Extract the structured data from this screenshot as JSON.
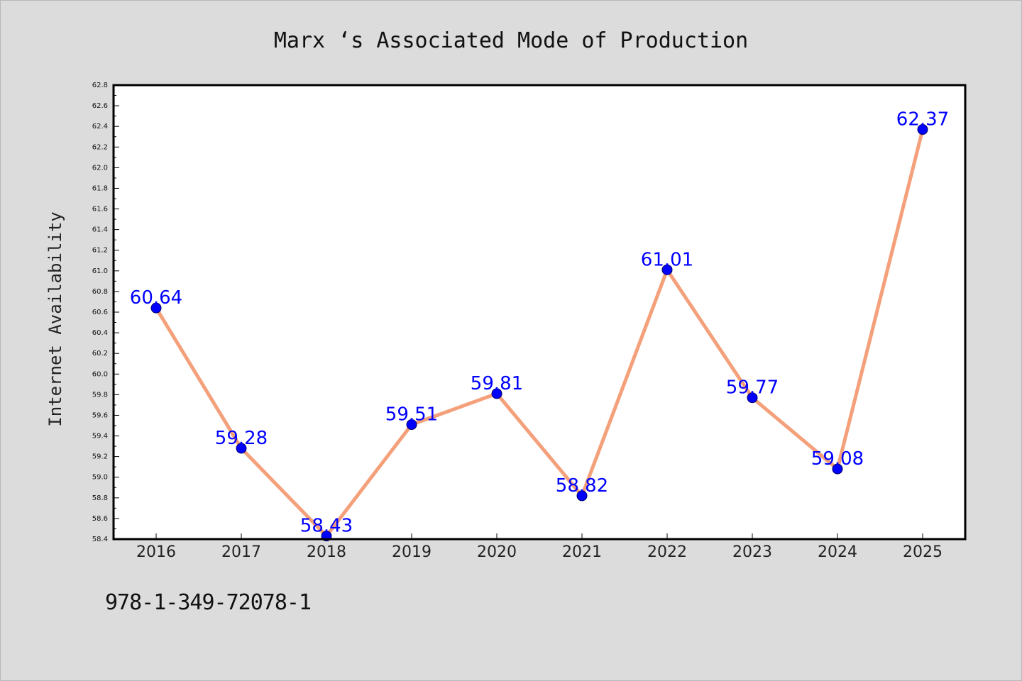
{
  "chart_data": {
    "type": "line",
    "title": "Marx ‘s Associated Mode of Production",
    "xlabel": "",
    "ylabel": "Internet Availability",
    "categories": [
      "2016",
      "2017",
      "2018",
      "2019",
      "2020",
      "2021",
      "2022",
      "2023",
      "2024",
      "2025"
    ],
    "series": [
      {
        "values": [
          60.64,
          59.28,
          58.43,
          59.51,
          59.81,
          58.82,
          61.01,
          59.77,
          59.08,
          62.37
        ],
        "data_labels": [
          "60.64",
          "59.28",
          "58.43",
          "59.51",
          "59.81",
          "58.82",
          "61.01",
          "59.77",
          "59.08",
          "62.37"
        ]
      }
    ],
    "ylim": [
      58.4,
      62.8
    ],
    "yticks": [
      "58.4",
      "58.6",
      "58.8",
      "59.0",
      "59.2",
      "59.4",
      "59.6",
      "59.8",
      "60.0",
      "60.2",
      "60.4",
      "60.6",
      "60.8",
      "61.0",
      "61.2",
      "61.4",
      "61.6",
      "61.8",
      "62.0",
      "62.2",
      "62.4",
      "62.6",
      "62.8"
    ],
    "grid": false,
    "legend": "none",
    "colors": {
      "line": "#f4a07a",
      "marker": "#0000ff",
      "marker_edge": "#000066",
      "data_label": "#0000ff",
      "plot_background": "#ffffff",
      "page_background": "#dcdcdc"
    }
  },
  "footer": {
    "isbn": "978-1-349-72078-1"
  }
}
